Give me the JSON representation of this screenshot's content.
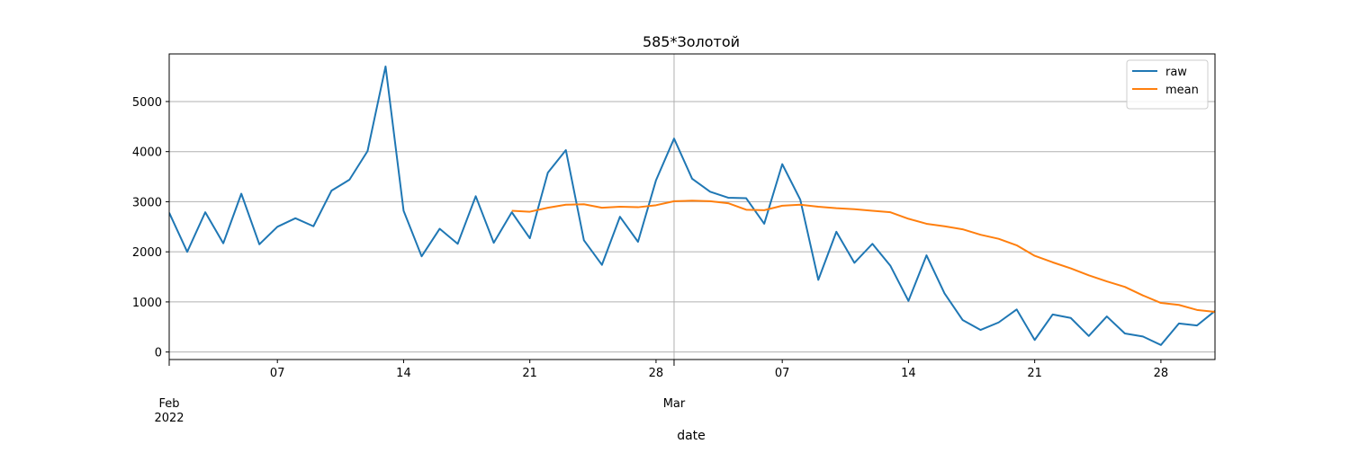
{
  "chart_data": {
    "type": "line",
    "title": "585*Золотой",
    "xlabel": "date",
    "ylabel": "",
    "ylim": [
      -150,
      5950
    ],
    "xlim": [
      "2022-02-01",
      "2022-03-31"
    ],
    "y_ticks": [
      0,
      1000,
      2000,
      3000,
      4000,
      5000
    ],
    "y_tick_labels": [
      "0",
      "1000",
      "2000",
      "3000",
      "4000",
      "5000"
    ],
    "x_minor_ticks": [
      {
        "date": "2022-02-07",
        "label": "07"
      },
      {
        "date": "2022-02-14",
        "label": "14"
      },
      {
        "date": "2022-02-21",
        "label": "21"
      },
      {
        "date": "2022-02-28",
        "label": "28"
      },
      {
        "date": "2022-03-07",
        "label": "07"
      },
      {
        "date": "2022-03-14",
        "label": "14"
      },
      {
        "date": "2022-03-21",
        "label": "21"
      },
      {
        "date": "2022-03-28",
        "label": "28"
      }
    ],
    "x_major_ticks": [
      {
        "date": "2022-02-01",
        "label": "Feb",
        "sublabel": "2022"
      },
      {
        "date": "2022-03-01",
        "label": "Mar",
        "sublabel": ""
      }
    ],
    "grid": "horizontal at y ticks, vertical at major x ticks",
    "legend_position": "top-right",
    "x": [
      "2022-02-01",
      "2022-02-02",
      "2022-02-03",
      "2022-02-04",
      "2022-02-05",
      "2022-02-06",
      "2022-02-07",
      "2022-02-08",
      "2022-02-09",
      "2022-02-10",
      "2022-02-11",
      "2022-02-12",
      "2022-02-13",
      "2022-02-14",
      "2022-02-15",
      "2022-02-16",
      "2022-02-17",
      "2022-02-18",
      "2022-02-19",
      "2022-02-20",
      "2022-02-21",
      "2022-02-22",
      "2022-02-23",
      "2022-02-24",
      "2022-02-25",
      "2022-02-26",
      "2022-02-27",
      "2022-02-28",
      "2022-03-01",
      "2022-03-02",
      "2022-03-03",
      "2022-03-04",
      "2022-03-05",
      "2022-03-06",
      "2022-03-07",
      "2022-03-08",
      "2022-03-09",
      "2022-03-10",
      "2022-03-11",
      "2022-03-12",
      "2022-03-13",
      "2022-03-14",
      "2022-03-15",
      "2022-03-16",
      "2022-03-17",
      "2022-03-18",
      "2022-03-19",
      "2022-03-20",
      "2022-03-21",
      "2022-03-22",
      "2022-03-23",
      "2022-03-24",
      "2022-03-25",
      "2022-03-26",
      "2022-03-27",
      "2022-03-28",
      "2022-03-29",
      "2022-03-30",
      "2022-03-31"
    ],
    "series": [
      {
        "name": "raw",
        "color": "#1f77b4",
        "values": [
          2780,
          2000,
          2790,
          2170,
          3160,
          2150,
          2500,
          2670,
          2510,
          3220,
          3440,
          4010,
          5700,
          2820,
          1910,
          2460,
          2160,
          3110,
          2180,
          2790,
          2270,
          3580,
          4030,
          2230,
          1740,
          2700,
          2200,
          3430,
          4260,
          3460,
          3200,
          3080,
          3070,
          2560,
          3750,
          3040,
          1440,
          2400,
          1780,
          2160,
          1720,
          1020,
          1930,
          1170,
          640,
          440,
          590,
          850,
          240,
          750,
          680,
          320,
          710,
          370,
          310,
          140,
          570,
          530,
          820
        ]
      },
      {
        "name": "mean",
        "color": "#ff7f0e",
        "values": [
          null,
          null,
          null,
          null,
          null,
          null,
          null,
          null,
          null,
          null,
          null,
          null,
          null,
          null,
          null,
          null,
          null,
          null,
          null,
          2820,
          2800,
          2880,
          2940,
          2950,
          2880,
          2900,
          2890,
          2930,
          3010,
          3020,
          3010,
          2970,
          2840,
          2830,
          2920,
          2940,
          2900,
          2870,
          2850,
          2820,
          2790,
          2660,
          2560,
          2510,
          2450,
          2340,
          2260,
          2130,
          1920,
          1790,
          1670,
          1530,
          1410,
          1300,
          1130,
          980,
          940,
          840,
          800
        ]
      }
    ]
  }
}
